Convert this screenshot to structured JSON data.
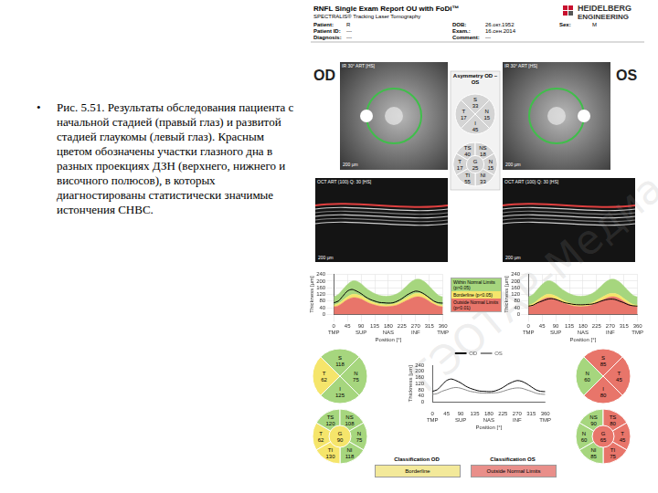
{
  "caption": {
    "bullet": "•",
    "text": "Рис. 5.51. Результаты обследования пациента с начальной стадией (правый глаз) и развитой стадией глаукомы (левый глаз). Красным цветом обозначены участки глазного дна в разных проекциях ДЗН (верхнего, нижнего и височного полюсов), в которых диагностированы статистически значимые истончения СНВС."
  },
  "watermark": "ГЭОТАР-Медиа",
  "report": {
    "header": {
      "title": "RNFL Single Exam Report OU with FoDi™",
      "subtitle": "SPECTRALIS® Tracking Laser Tomography",
      "brand": [
        "HEIDELBERG",
        "ENGINEERING"
      ],
      "fields": [
        {
          "label": "Patient:",
          "value": "R"
        },
        {
          "label": "Patient ID:",
          "value": "---"
        },
        {
          "label": "Diagnosis:",
          "value": "---"
        },
        {
          "label": "DOB:",
          "value": "26.окт.1952"
        },
        {
          "label": "Exam.:",
          "value": "16.сен.2014"
        },
        {
          "label": "Comment:",
          "value": "---"
        },
        {
          "label": "Sex:",
          "value": "M"
        }
      ]
    },
    "eyes": [
      {
        "label": "OD",
        "fundus_label": "IR 30° ART [HS]",
        "scan_label": "OCT ART (100) Q: 30 [HS]",
        "scale_label": "200 µm",
        "quadrants": [
          {
            "label": "T",
            "value": 62,
            "color": "#f5e56b"
          },
          {
            "label": "S",
            "value": 118,
            "color": "#a6d67e"
          },
          {
            "label": "N",
            "value": 75,
            "color": "#a6d67e"
          },
          {
            "label": "I",
            "value": 125,
            "color": "#a6d67e"
          }
        ],
        "sectors": [
          {
            "label": "T",
            "value": 62,
            "color": "#f5e56b"
          },
          {
            "label": "TS",
            "value": 120,
            "color": "#a6d67e"
          },
          {
            "label": "NS",
            "value": 108,
            "color": "#a6d67e"
          },
          {
            "label": "N",
            "value": 75,
            "color": "#a6d67e"
          },
          {
            "label": "NI",
            "value": 118,
            "color": "#a6d67e"
          },
          {
            "label": "TI",
            "value": 130,
            "color": "#f5e56b"
          }
        ],
        "global": {
          "label": "G",
          "value": 90,
          "color": "#f5e56b"
        },
        "classification": {
          "title": "Classification OD",
          "result": "Borderline",
          "color": "#f3e99a"
        }
      },
      {
        "label": "OS",
        "fundus_label": "IR 30° ART [HS]",
        "scan_label": "OCT ART (100) Q: 30 [HS]",
        "scale_label": "200 µm",
        "quadrants": [
          {
            "label": "N",
            "value": 60,
            "color": "#a6d67e"
          },
          {
            "label": "S",
            "value": 85,
            "color": "#e8756a"
          },
          {
            "label": "T",
            "value": 45,
            "color": "#e8756a"
          },
          {
            "label": "I",
            "value": 80,
            "color": "#e8756a"
          }
        ],
        "sectors": [
          {
            "label": "N",
            "value": 60,
            "color": "#a6d67e"
          },
          {
            "label": "NS",
            "value": 90,
            "color": "#a6d67e"
          },
          {
            "label": "TS",
            "value": 80,
            "color": "#e8756a"
          },
          {
            "label": "T",
            "value": 45,
            "color": "#e8756a"
          },
          {
            "label": "TI",
            "value": 75,
            "color": "#e8756a"
          },
          {
            "label": "NI",
            "value": 85,
            "color": "#a6d67e"
          }
        ],
        "global": {
          "label": "G",
          "value": 65,
          "color": "#e8756a"
        },
        "classification": {
          "title": "Classification OS",
          "result": "Outside Normal Limits",
          "color": "#e98f8a"
        }
      }
    ],
    "asymmetry": {
      "title": "Asymmetry OD – OS",
      "quadrants": [
        {
          "label": "T",
          "value": 17,
          "color": "#d4d4d4"
        },
        {
          "label": "S",
          "value": 33,
          "color": "#d4d4d4"
        },
        {
          "label": "N",
          "value": 15,
          "color": "#d4d4d4"
        },
        {
          "label": "I",
          "value": 45,
          "color": "#d4d4d4"
        }
      ],
      "sectors": [
        {
          "label": "T",
          "value": 17,
          "color": "#d4d4d4"
        },
        {
          "label": "TS",
          "value": 40,
          "color": "#d4d4d4"
        },
        {
          "label": "NS",
          "value": 18,
          "color": "#d4d4d4"
        },
        {
          "label": "N",
          "value": 15,
          "color": "#d4d4d4"
        },
        {
          "label": "NI",
          "value": 33,
          "color": "#d4d4d4"
        },
        {
          "label": "TI",
          "value": 55,
          "color": "#d4d4d4"
        }
      ],
      "global": {
        "label": "G",
        "value": 25,
        "color": "#d4d4d4"
      }
    }
  },
  "chart_data": [
    {
      "type": "line",
      "xlabel": "Position [°]",
      "ylabel": "Thickness [µm]",
      "x": [
        0,
        15,
        30,
        45,
        60,
        75,
        90,
        105,
        120,
        135,
        150,
        165,
        180,
        195,
        210,
        225,
        240,
        255,
        270,
        285,
        300,
        315,
        330,
        345,
        360
      ],
      "xlim": [
        0,
        360
      ],
      "xticks": [
        {
          "value": 0,
          "label": [
            "0",
            "TMP"
          ]
        },
        45,
        {
          "value": 90,
          "label": [
            "90",
            "SUP"
          ]
        },
        135,
        {
          "value": 180,
          "label": [
            "180",
            "NAS"
          ]
        },
        225,
        {
          "value": 270,
          "label": [
            "270",
            "INF"
          ]
        },
        315,
        {
          "value": 360,
          "label": [
            "360",
            "TMP"
          ]
        }
      ],
      "ylim": [
        0,
        240
      ],
      "yticks": [
        0,
        40,
        80,
        120,
        160,
        200,
        240
      ],
      "grid": true,
      "series": [
        {
          "name": "Outside Normal Limits (p<0.01)",
          "type": "area",
          "color": "#e8756a",
          "values": [
            45,
            52,
            70,
            88,
            100,
            100,
            92,
            78,
            65,
            57,
            50,
            47,
            47,
            50,
            57,
            70,
            83,
            96,
            105,
            105,
            95,
            78,
            62,
            50,
            45
          ]
        },
        {
          "name": "Borderline (p<0.05)",
          "type": "area",
          "color": "#f5e56b",
          "values": [
            55,
            65,
            85,
            105,
            120,
            120,
            110,
            95,
            80,
            70,
            62,
            58,
            58,
            62,
            70,
            85,
            100,
            115,
            125,
            125,
            115,
            95,
            75,
            60,
            55
          ]
        },
        {
          "name": "Within Normal Limits (p>0.05)",
          "type": "area",
          "color": "#a6d67e",
          "values": [
            105,
            120,
            150,
            180,
            200,
            200,
            185,
            160,
            140,
            125,
            115,
            110,
            110,
            115,
            125,
            145,
            170,
            195,
            210,
            210,
            195,
            170,
            140,
            115,
            105
          ]
        },
        {
          "type": "line",
          "color": "#000000",
          "values": [
            70,
            80,
            110,
            140,
            150,
            140,
            125,
            105,
            90,
            80,
            72,
            70,
            68,
            70,
            80,
            95,
            115,
            130,
            140,
            135,
            120,
            100,
            80,
            70,
            68
          ]
        }
      ]
    },
    {
      "type": "line",
      "xlabel": "Position [°]",
      "ylabel": "Thickness [µm]",
      "x": [
        0,
        15,
        30,
        45,
        60,
        75,
        90,
        105,
        120,
        135,
        150,
        165,
        180,
        195,
        210,
        225,
        240,
        255,
        270,
        285,
        300,
        315,
        330,
        345,
        360
      ],
      "xlim": [
        0,
        360
      ],
      "xticks": [
        {
          "value": 0,
          "label": [
            "0",
            "TMP"
          ]
        },
        45,
        {
          "value": 90,
          "label": [
            "90",
            "SUP"
          ]
        },
        135,
        {
          "value": 180,
          "label": [
            "180",
            "NAS"
          ]
        },
        225,
        {
          "value": 270,
          "label": [
            "270",
            "INF"
          ]
        },
        315,
        {
          "value": 360,
          "label": [
            "360",
            "TMP"
          ]
        }
      ],
      "ylim": [
        0,
        240
      ],
      "yticks": [
        0,
        40,
        80,
        120,
        160,
        200,
        240
      ],
      "grid": true,
      "series": [
        {
          "name": "Outside Normal Limits (p<0.01)",
          "type": "area",
          "color": "#e8756a",
          "values": [
            45,
            52,
            70,
            88,
            100,
            100,
            92,
            78,
            65,
            57,
            50,
            47,
            47,
            50,
            57,
            70,
            83,
            96,
            105,
            105,
            95,
            78,
            62,
            50,
            45
          ]
        },
        {
          "name": "Borderline (p<0.05)",
          "type": "area",
          "color": "#f5e56b",
          "values": [
            55,
            65,
            85,
            105,
            120,
            120,
            110,
            95,
            80,
            70,
            62,
            58,
            58,
            62,
            70,
            85,
            100,
            115,
            125,
            125,
            115,
            95,
            75,
            60,
            55
          ]
        },
        {
          "name": "Within Normal Limits (p>0.05)",
          "type": "area",
          "color": "#a6d67e",
          "values": [
            105,
            120,
            150,
            180,
            200,
            200,
            185,
            160,
            140,
            125,
            115,
            110,
            110,
            115,
            125,
            145,
            170,
            195,
            210,
            210,
            195,
            170,
            140,
            115,
            105
          ]
        },
        {
          "type": "line",
          "color": "#000000",
          "values": [
            50,
            55,
            70,
            80,
            90,
            95,
            90,
            80,
            70,
            65,
            60,
            58,
            58,
            60,
            62,
            70,
            80,
            88,
            92,
            90,
            80,
            70,
            58,
            52,
            50
          ]
        }
      ]
    },
    {
      "type": "line",
      "xlabel": "Position [°]",
      "ylabel": "Thickness [µm]",
      "legend": "top",
      "x": [
        0,
        15,
        30,
        45,
        60,
        75,
        90,
        105,
        120,
        135,
        150,
        165,
        180,
        195,
        210,
        225,
        240,
        255,
        270,
        285,
        300,
        315,
        330,
        345,
        360
      ],
      "xlim": [
        0,
        360
      ],
      "xticks": [
        {
          "value": 0,
          "label": [
            "0",
            "TMP"
          ]
        },
        45,
        {
          "value": 90,
          "label": [
            "90",
            "SUP"
          ]
        },
        135,
        {
          "value": 180,
          "label": [
            "180",
            "NAS"
          ]
        },
        225,
        {
          "value": 270,
          "label": [
            "270",
            "INF"
          ]
        },
        315,
        {
          "value": 360,
          "label": [
            "360",
            "TMP"
          ]
        }
      ],
      "ylim": [
        0,
        240
      ],
      "yticks": [
        0,
        40,
        80,
        120,
        160,
        200,
        240
      ],
      "grid": false,
      "series": [
        {
          "name": "OD",
          "type": "line",
          "color": "#000000",
          "values": [
            70,
            80,
            110,
            140,
            150,
            140,
            125,
            105,
            90,
            80,
            72,
            70,
            68,
            70,
            80,
            95,
            115,
            130,
            140,
            135,
            120,
            100,
            80,
            70,
            68
          ]
        },
        {
          "name": "OS",
          "type": "line",
          "color": "#8a8a8a",
          "values": [
            50,
            55,
            70,
            80,
            90,
            95,
            90,
            80,
            70,
            65,
            60,
            58,
            58,
            60,
            62,
            70,
            80,
            88,
            92,
            90,
            80,
            70,
            58,
            52,
            50
          ]
        }
      ]
    }
  ]
}
